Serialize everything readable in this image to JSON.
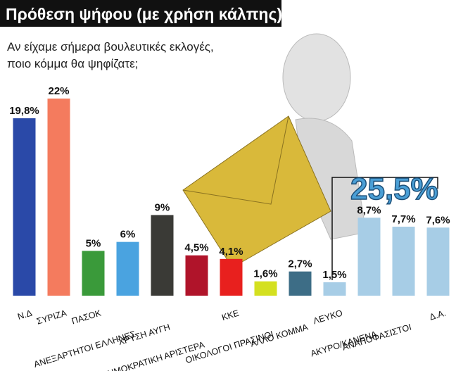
{
  "chart_data": {
    "type": "bar",
    "title": "Πρόθεση ψήφου (με χρήση κάλπης)",
    "subtitle": [
      "Αν είχαμε σήμερα βουλευτικές εκλογές,",
      "ποιο κόμμα θα ψηφίζατε;"
    ],
    "categories": [
      "Ν.Δ",
      "ΣΥΡΙΖΑ",
      "ΠΑΣΟΚ",
      "ΑΝΕΞΑΡΤΗΤΟΙ ΕΛΛΗΝΕΣ",
      "ΧΡΥΣΗ ΑΥΓΗ",
      "ΔΗΜΟΚΡΑΤΙΚΗ ΑΡΙΣΤΕΡΑ",
      "ΚΚΕ",
      "ΟΙΚΟΛΟΓΟΙ ΠΡΑΣΙΝΟΙ",
      "ΑΛΛΟ ΚΟΜΜΑ",
      "ΛΕΥΚΟ",
      "ΑΚΥΡΟ/ΚΑΝΕΝΑ",
      "ΑΝΑΠΟΦΑΣΙΣΤΟΙ",
      "Δ.Α."
    ],
    "values": [
      19.8,
      22,
      5,
      6,
      9,
      4.5,
      4.1,
      1.6,
      2.7,
      1.5,
      8.7,
      7.7,
      7.6
    ],
    "value_labels": [
      "19,8%",
      "22%",
      "5%",
      "6%",
      "9%",
      "4,5%",
      "4,1%",
      "1,6%",
      "2,7%",
      "1,5%",
      "8,7%",
      "7,7%",
      "7,6%"
    ],
    "colors": [
      "#2a49a8",
      "#f47b5e",
      "#3a9a3a",
      "#4aa3e0",
      "#3a3a36",
      "#b0142a",
      "#e8201e",
      "#d4e020",
      "#3d6d86",
      "#a7cde6",
      "#a7cde6",
      "#a7cde6",
      "#a7cde6"
    ],
    "annotation": "25,5%"
  }
}
